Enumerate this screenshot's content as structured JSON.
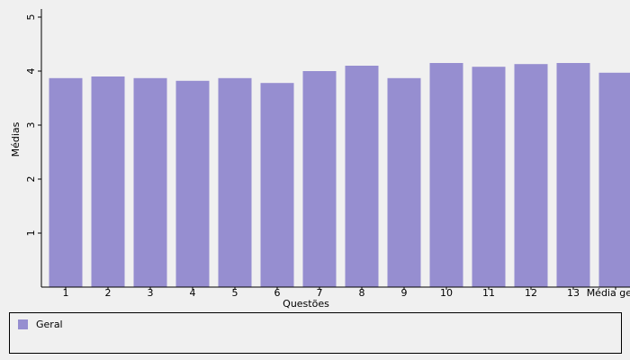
{
  "chart_data": {
    "type": "bar",
    "x_label": "Questões",
    "y_label": "Médias",
    "categories": [
      "1",
      "2",
      "3",
      "4",
      "5",
      "6",
      "7",
      "8",
      "9",
      "10",
      "11",
      "12",
      "13",
      "Média geral"
    ],
    "series": [
      {
        "name": "Geral",
        "color": "#968ed0",
        "values": [
          3.87,
          3.9,
          3.87,
          3.82,
          3.87,
          3.78,
          4.0,
          4.1,
          3.87,
          4.15,
          4.08,
          4.13,
          4.15,
          3.97
        ]
      }
    ],
    "ylim": [
      0,
      5.15
    ],
    "yticks": [
      1,
      2,
      3,
      4,
      5
    ],
    "legend": "bottom"
  }
}
